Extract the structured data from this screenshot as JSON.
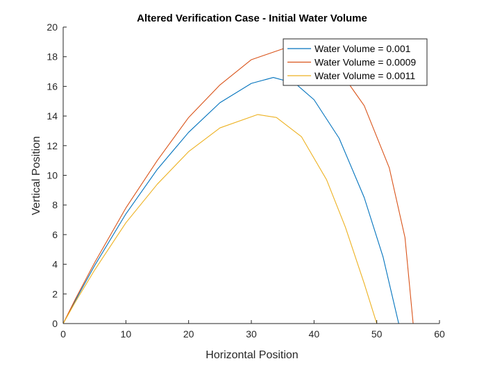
{
  "chart_data": {
    "type": "line",
    "title": "Altered Verification Case - Initial Water Volume",
    "xlabel": "Horizontal Position",
    "ylabel": "Vertical Position",
    "xlim": [
      0,
      60
    ],
    "ylim": [
      0,
      20
    ],
    "xticks": [
      0,
      10,
      20,
      30,
      40,
      50,
      60
    ],
    "yticks": [
      0,
      2,
      4,
      6,
      8,
      10,
      12,
      14,
      16,
      18,
      20
    ],
    "grid": false,
    "legend_position": "top-right",
    "series": [
      {
        "name": "Water Volume = 0.001",
        "color": "#0072BD",
        "x": [
          0,
          2,
          5,
          10,
          15,
          20,
          25,
          30,
          33.5,
          37,
          40,
          44,
          48,
          51,
          53.5
        ],
        "y": [
          0,
          1.6,
          3.9,
          7.4,
          10.4,
          12.9,
          14.9,
          16.2,
          16.6,
          16.2,
          15.1,
          12.5,
          8.5,
          4.5,
          0
        ]
      },
      {
        "name": "Water Volume = 0.0009",
        "color": "#D95319",
        "x": [
          0,
          2,
          5,
          10,
          15,
          20,
          25,
          30,
          35.5,
          40,
          44,
          48,
          52,
          54.5,
          55.8
        ],
        "y": [
          0,
          1.7,
          4.1,
          7.8,
          11,
          13.9,
          16.1,
          17.8,
          18.6,
          18.3,
          17.1,
          14.7,
          10.5,
          5.8,
          0
        ]
      },
      {
        "name": "Water Volume = 0.0011",
        "color": "#EDB120",
        "x": [
          0,
          2,
          5,
          10,
          15,
          20,
          25,
          31,
          34,
          38,
          42,
          45,
          48,
          50
        ],
        "y": [
          0,
          1.5,
          3.6,
          6.8,
          9.4,
          11.6,
          13.2,
          14.1,
          13.9,
          12.6,
          9.7,
          6.5,
          2.7,
          0
        ]
      }
    ]
  }
}
